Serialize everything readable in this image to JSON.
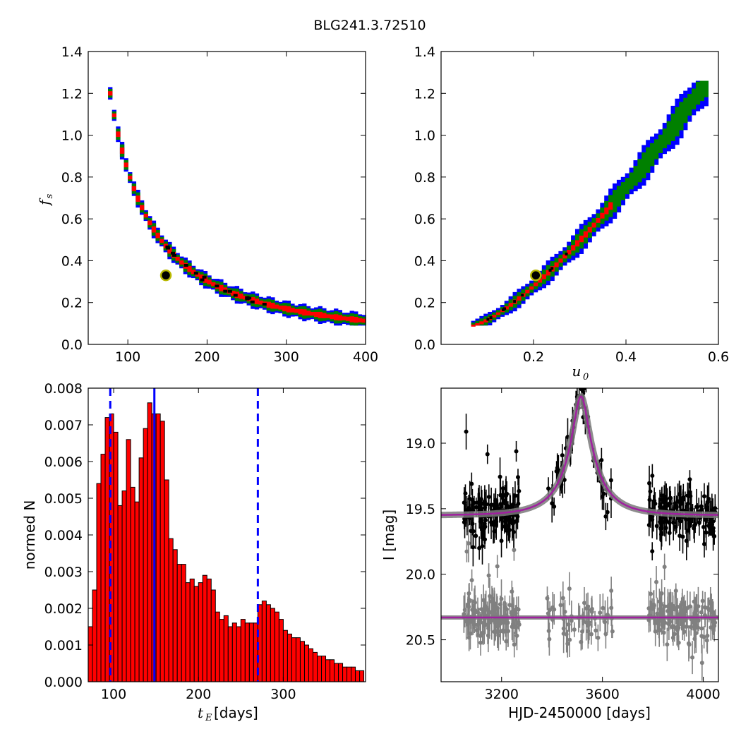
{
  "title": "BLG241.3.72510",
  "colors": {
    "region_3sigma": "#0000ff",
    "region_2sigma": "#008000",
    "region_1sigma": "#ff0000",
    "hist_fill": "#ff0000",
    "median_line": "#0000ff",
    "model_line": "#a020a0",
    "data_points": "#000000",
    "residual_points": "#808080"
  },
  "chart_data": [
    {
      "id": "fs-vs-tE",
      "type": "scatter",
      "xlabel": "",
      "ylabel": "f",
      "ylabel_sub": "s",
      "xlim": [
        50,
        400
      ],
      "ylim": [
        0.0,
        1.4
      ],
      "xticks": [
        "100",
        "200",
        "300",
        "400"
      ],
      "yticks": [
        "0.0",
        "0.2",
        "0.4",
        "0.6",
        "0.8",
        "1.0",
        "1.2",
        "1.4"
      ],
      "relation": "fs = 1.2 * (75 / tE)^1.42",
      "x_range": [
        70,
        395
      ],
      "best_fit": {
        "x": 148,
        "y": 0.33
      },
      "band_halfwidth_y": {
        "outer": 0.034,
        "middle": 0.024,
        "inner": 0.012
      }
    },
    {
      "id": "fs-vs-u0",
      "type": "scatter",
      "xlabel": "u",
      "xlabel_sub": "0",
      "ylabel": "",
      "xlim": [
        0.0,
        0.6
      ],
      "ylim": [
        0.0,
        1.4
      ],
      "xticks": [
        "0.2",
        "0.4",
        "0.6"
      ],
      "yticks": [
        "0.0",
        "0.2",
        "0.4",
        "0.6",
        "0.8",
        "1.0",
        "1.2",
        "1.4"
      ],
      "x_range": [
        0.065,
        0.57
      ],
      "best_fit": {
        "x": 0.205,
        "y": 0.33
      },
      "band_halfwidth_y": {
        "outer": 0.055,
        "middle": 0.035,
        "inner": 0.012
      }
    },
    {
      "id": "tE-histogram",
      "type": "bar",
      "xlabel": "t",
      "xlabel_sub": "E",
      "xlabel_unit": "[days]",
      "ylabel": "normed N",
      "xlim": [
        70,
        397
      ],
      "ylim": [
        0.0,
        0.008
      ],
      "xticks": [
        "100",
        "200",
        "300"
      ],
      "yticks": [
        "0.000",
        "0.001",
        "0.002",
        "0.003",
        "0.004",
        "0.005",
        "0.006",
        "0.007",
        "0.008"
      ],
      "bin_start": 70,
      "bin_width": 5,
      "values": [
        0.0015,
        0.0025,
        0.0054,
        0.0062,
        0.0072,
        0.0073,
        0.0068,
        0.0048,
        0.0052,
        0.0066,
        0.0053,
        0.0049,
        0.0061,
        0.0069,
        0.0076,
        0.0073,
        0.0073,
        0.0071,
        0.0055,
        0.0039,
        0.0036,
        0.0032,
        0.0032,
        0.0027,
        0.0028,
        0.0026,
        0.0027,
        0.0029,
        0.0028,
        0.0025,
        0.0019,
        0.0017,
        0.0018,
        0.0015,
        0.0016,
        0.0015,
        0.0017,
        0.0016,
        0.0016,
        0.0016,
        0.0021,
        0.0022,
        0.0021,
        0.002,
        0.0019,
        0.0017,
        0.0014,
        0.0013,
        0.0012,
        0.0012,
        0.0011,
        0.001,
        0.0009,
        0.0008,
        0.0007,
        0.0007,
        0.0006,
        0.0006,
        0.0005,
        0.0005,
        0.0004,
        0.0004,
        0.0004,
        0.0003,
        0.0003
      ],
      "median_tE": 148,
      "interval_tE": [
        96,
        270
      ]
    },
    {
      "id": "lightcurve",
      "type": "scatter",
      "xlabel": "HJD-2450000 [days]",
      "ylabel": "I [mag]",
      "xlim": [
        2960,
        4060
      ],
      "ylim": [
        20.82,
        18.58
      ],
      "xticks": [
        "3200",
        "3600",
        "4000"
      ],
      "yticks": [
        "19.0",
        "19.5",
        "20.0",
        "20.5"
      ],
      "model": {
        "t0": 3515,
        "tE": 148,
        "u0": 0.205,
        "fs": 0.33,
        "I_base": 19.55
      },
      "residual_offset_mag": 20.33,
      "season_ranges": [
        [
          3050,
          3270
        ],
        [
          3380,
          3640
        ],
        [
          3780,
          4050
        ]
      ]
    }
  ]
}
